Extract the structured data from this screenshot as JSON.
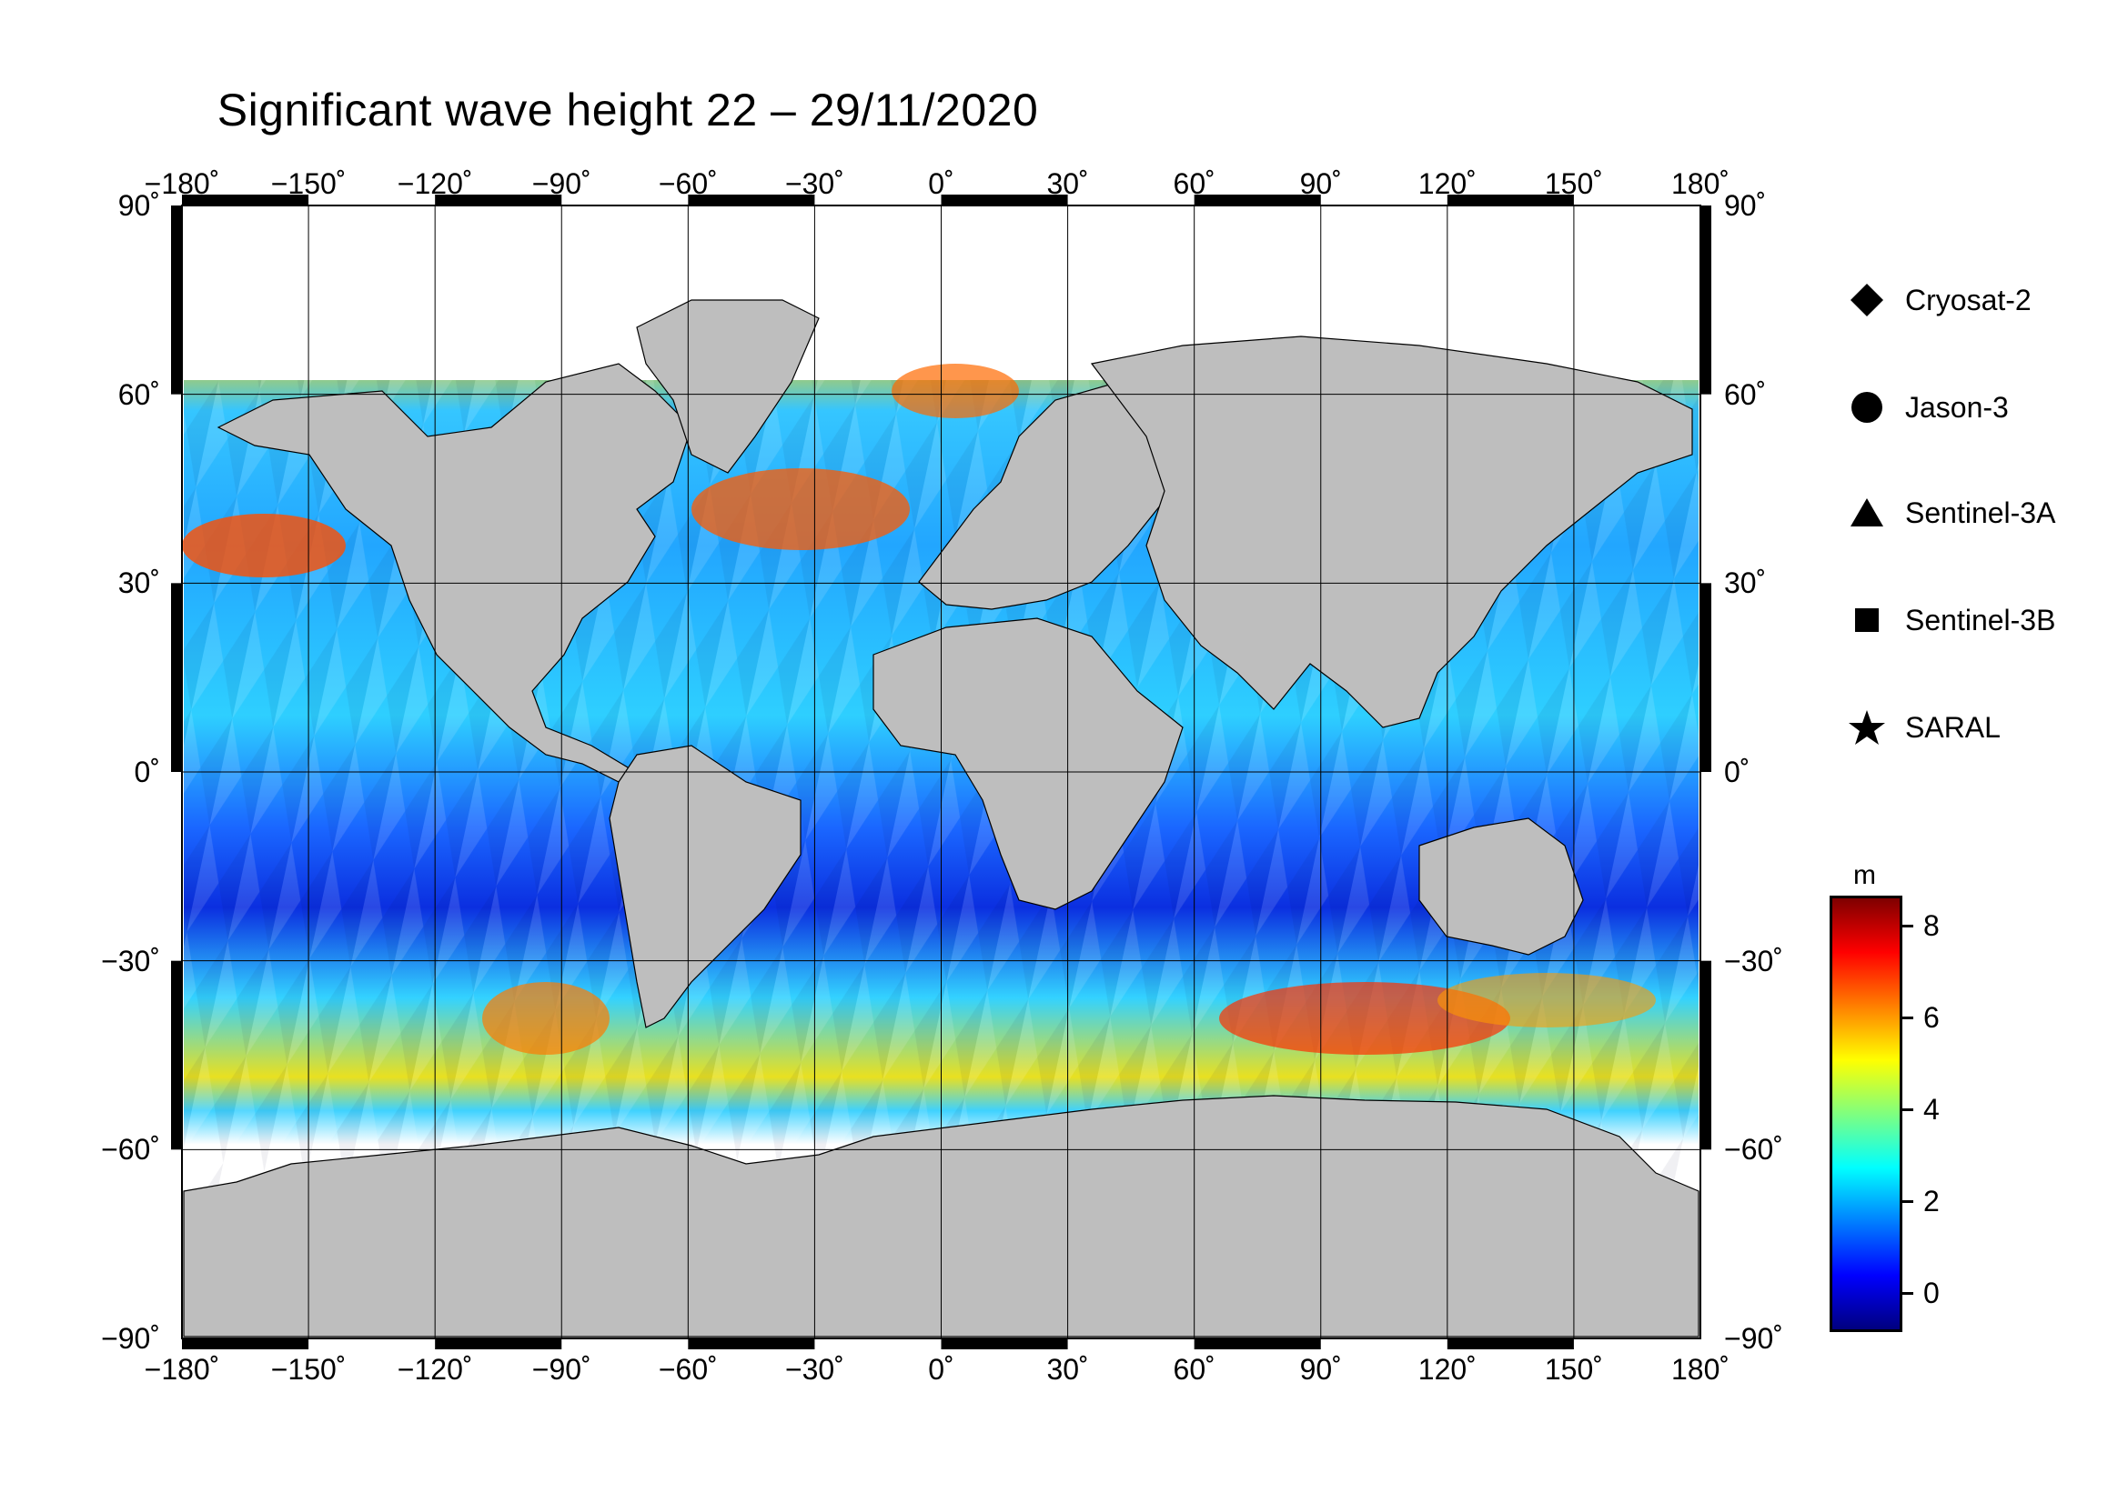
{
  "title": "Significant wave height 22 – 29/11/2020",
  "map": {
    "projection": "equirectangular",
    "lon_range": [
      -180,
      180
    ],
    "lat_range": [
      -90,
      90
    ],
    "grid": true,
    "land_color": "#bebebe",
    "ice_color": "#ffffff"
  },
  "lon_ticks": [
    {
      "value": -180,
      "label": "−180˚"
    },
    {
      "value": -150,
      "label": "−150˚"
    },
    {
      "value": -120,
      "label": "−120˚"
    },
    {
      "value": -90,
      "label": "−90˚"
    },
    {
      "value": -60,
      "label": "−60˚"
    },
    {
      "value": -30,
      "label": "−30˚"
    },
    {
      "value": 0,
      "label": "0˚"
    },
    {
      "value": 30,
      "label": "30˚"
    },
    {
      "value": 60,
      "label": "60˚"
    },
    {
      "value": 90,
      "label": "90˚"
    },
    {
      "value": 120,
      "label": "120˚"
    },
    {
      "value": 150,
      "label": "150˚"
    },
    {
      "value": 180,
      "label": "180˚"
    }
  ],
  "lat_ticks": [
    {
      "value": 90,
      "left": "90˚",
      "right": "90˚"
    },
    {
      "value": 60,
      "left": "60˚",
      "right": "60˚"
    },
    {
      "value": 30,
      "left": "30˚",
      "right": "30˚"
    },
    {
      "value": 0,
      "left": "0˚",
      "right": "0˚"
    },
    {
      "value": -30,
      "left": "−30˚",
      "right": "−30˚"
    },
    {
      "value": -60,
      "left": "−60˚",
      "right": "−60˚"
    },
    {
      "value": -90,
      "left": "−90˚",
      "right": "−90˚"
    }
  ],
  "legend": [
    {
      "icon": "diamond-icon",
      "label": "Cryosat-2"
    },
    {
      "icon": "circle-icon",
      "label": "Jason-3"
    },
    {
      "icon": "triangle-icon",
      "label": "Sentinel-3A"
    },
    {
      "icon": "square-icon",
      "label": "Sentinel-3B"
    },
    {
      "icon": "star-icon",
      "label": "SARAL"
    }
  ],
  "colorbar": {
    "unit": "m",
    "min": -0.8,
    "max": 8.6,
    "ticks": [
      {
        "value": 8,
        "label": "8"
      },
      {
        "value": 6,
        "label": "6"
      },
      {
        "value": 4,
        "label": "4"
      },
      {
        "value": 2,
        "label": "2"
      },
      {
        "value": 0,
        "label": "0"
      }
    ],
    "colors": [
      "#00007f",
      "#0000ff",
      "#007fff",
      "#00ffff",
      "#7fff7f",
      "#ffff00",
      "#ff7f00",
      "#ff0000",
      "#7f0000"
    ]
  }
}
